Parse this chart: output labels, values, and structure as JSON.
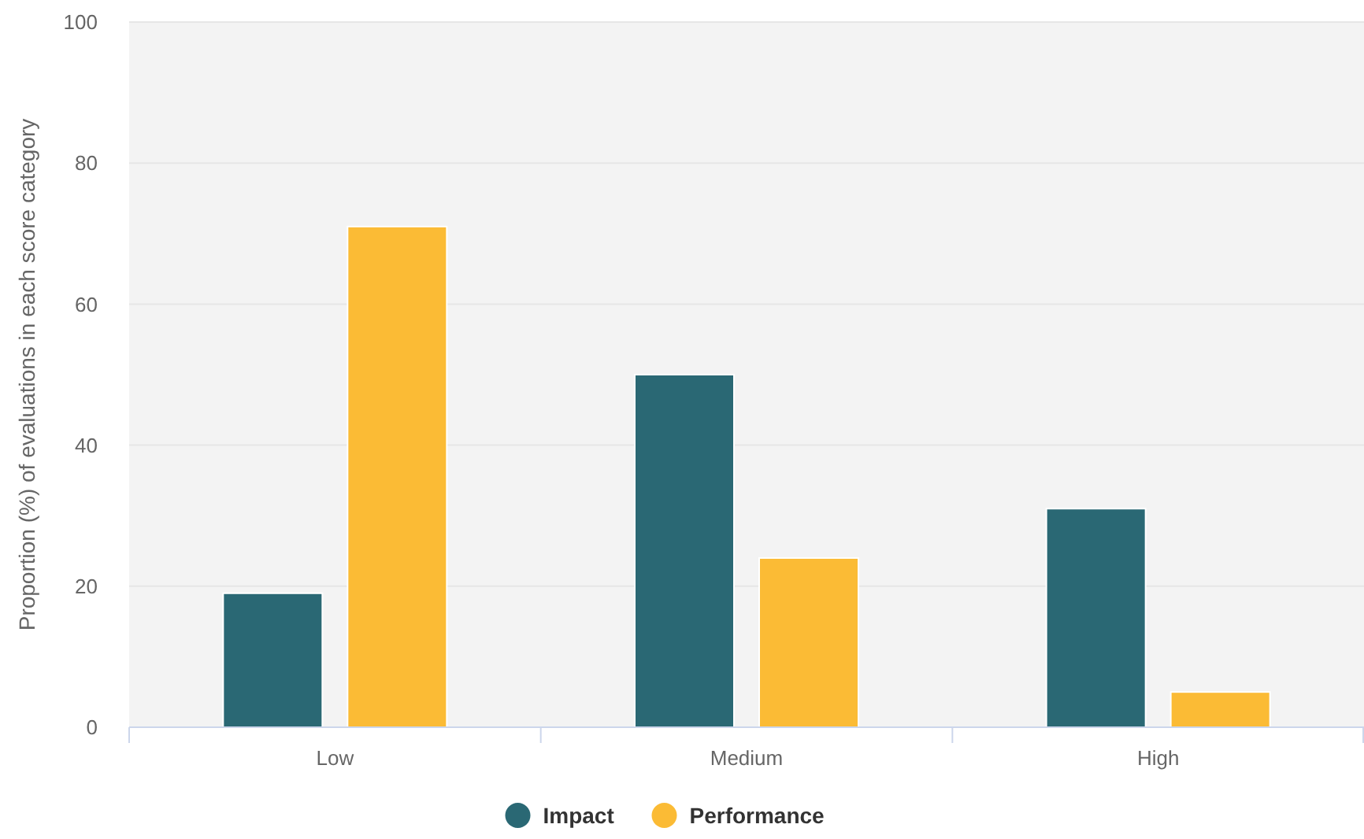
{
  "chart_data": {
    "type": "bar",
    "ylabel": "Proportion (%) of evaluations in each score category",
    "categories": [
      "Low",
      "Medium",
      "High"
    ],
    "series": [
      {
        "name": "Impact",
        "color": "#2a6874",
        "values": [
          19,
          50,
          31
        ]
      },
      {
        "name": "Performance",
        "color": "#fbbb35",
        "values": [
          71,
          24,
          5
        ]
      }
    ],
    "ylim": [
      0,
      100
    ],
    "yticks": [
      0,
      20,
      40,
      60,
      80,
      100
    ],
    "grid": "y",
    "legend": "bottom"
  }
}
